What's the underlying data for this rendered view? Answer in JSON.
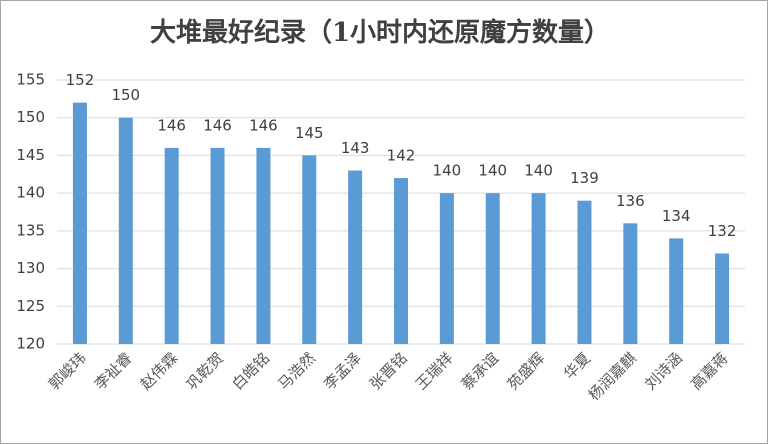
{
  "chart_data": {
    "type": "bar",
    "title": "大堆最好纪录（1小时内还原魔方数量）",
    "categories": [
      "郭峻玮",
      "李祉睿",
      "赵伟霖",
      "巩乾贺",
      "白皓铭",
      "马浩然",
      "李孟泽",
      "张晋铭",
      "王瑞祥",
      "蔡承谊",
      "苑盛辉",
      "华夏",
      "杨润嘉麒",
      "刘诗涵",
      "高嘉蒋"
    ],
    "values": [
      152,
      150,
      146,
      146,
      146,
      145,
      143,
      142,
      140,
      140,
      140,
      139,
      136,
      134,
      132
    ],
    "color": "#5b9bd5",
    "ylim": [
      120,
      155
    ],
    "yticks": [
      120,
      125,
      130,
      135,
      140,
      145,
      150,
      155
    ],
    "grid": true
  }
}
